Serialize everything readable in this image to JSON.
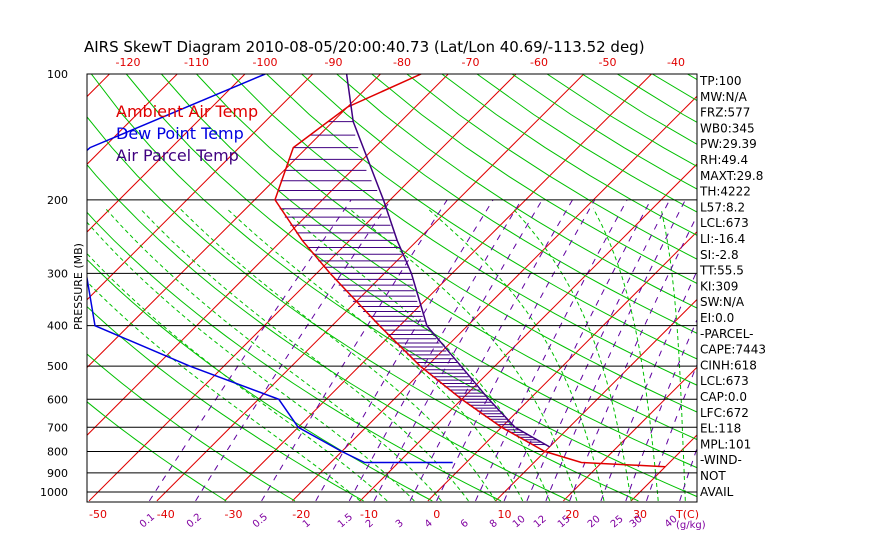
{
  "chart_data": {
    "type": "line",
    "title": "AIRS SkewT Diagram 2010-08-05/20:00:40.73 (Lat/Lon 40.69/-113.52 deg)",
    "ylabel": "PRESSURE (MB)",
    "xlabel": "T(C)",
    "mixing_ratio_unit": "(g/kg)",
    "pressure_ticks": [
      100,
      200,
      300,
      400,
      500,
      600,
      700,
      800,
      900,
      1000
    ],
    "temp_ticks_top": [
      -120,
      -110,
      -100,
      -90,
      -80,
      -70,
      -60,
      -50,
      -40
    ],
    "temp_ticks_bottom": [
      -50,
      -40,
      -30,
      -20,
      -10,
      0,
      10,
      20,
      30
    ],
    "mixing_ratio_labels": [
      "0.1",
      "0.2",
      "0.5",
      "1",
      "1.5",
      "2",
      "3",
      "4",
      "6",
      "8",
      "10",
      "12",
      "15",
      "20",
      "25",
      "30",
      "40"
    ],
    "legend": [
      {
        "name": "Ambient Air Temp",
        "color": "#e00000"
      },
      {
        "name": "Dew Point Temp",
        "color": "#0000e0"
      },
      {
        "name": "Air Parcel Temp",
        "color": "#400080"
      }
    ],
    "series": [
      {
        "name": "Ambient Air Temp",
        "color": "#e00000",
        "points": [
          [
            100,
            -64
          ],
          [
            120,
            -70
          ],
          [
            150,
            -72
          ],
          [
            200,
            -67
          ],
          [
            250,
            -57
          ],
          [
            300,
            -48
          ],
          [
            400,
            -33
          ],
          [
            500,
            -21
          ],
          [
            600,
            -10
          ],
          [
            700,
            0
          ],
          [
            800,
            10
          ],
          [
            850,
            17
          ],
          [
            870,
            30
          ]
        ]
      },
      {
        "name": "Dew Point Temp",
        "color": "#0000e0",
        "points": [
          [
            100,
            -87
          ],
          [
            150,
            -102
          ],
          [
            200,
            -103
          ],
          [
            250,
            -93
          ],
          [
            300,
            -84
          ],
          [
            400,
            -75
          ],
          [
            500,
            -55
          ],
          [
            600,
            -37
          ],
          [
            700,
            -30
          ],
          [
            800,
            -20
          ],
          [
            850,
            -15
          ],
          [
            850,
            -2
          ]
        ]
      },
      {
        "name": "Air Parcel Temp",
        "color": "#400080",
        "points": [
          [
            100,
            -75
          ],
          [
            130,
            -67
          ],
          [
            200,
            -51
          ],
          [
            250,
            -43
          ],
          [
            300,
            -36
          ],
          [
            400,
            -26
          ],
          [
            500,
            -15
          ],
          [
            600,
            -6
          ],
          [
            700,
            2
          ],
          [
            780,
            10
          ]
        ]
      }
    ],
    "indices": [
      "TP:100",
      "MW:N/A",
      "FRZ:577",
      "WB0:345",
      "PW:29.39",
      "RH:49.4",
      "MAXT:29.8",
      "TH:4222",
      "L57:8.2",
      "LCL:673",
      "LI:-16.4",
      "SI:-2.8",
      "TT:55.5",
      "KI:309",
      "SW:N/A",
      "EI:0.0",
      "-PARCEL-",
      "CAPE:7443",
      "CINH:618",
      "LCL:673",
      "CAP:0.0",
      "LFC:672",
      "EL:118",
      "MPL:101",
      "-WIND-",
      "NOT",
      "AVAIL"
    ],
    "grid": true
  }
}
